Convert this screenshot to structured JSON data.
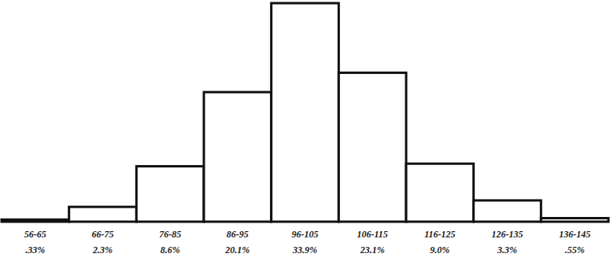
{
  "chart_data": {
    "type": "bar",
    "categories": [
      "56-65",
      "66-75",
      "76-85",
      "86-95",
      "96-105",
      "106-115",
      "116-125",
      "126-135",
      "136-145"
    ],
    "values": [
      0.33,
      2.3,
      8.6,
      20.1,
      33.9,
      23.1,
      9.0,
      3.3,
      0.55
    ],
    "value_labels": [
      ".33%",
      "2.3%",
      "8.6%",
      "20.1%",
      "33.9%",
      "23.1%",
      "9.0%",
      "3.3%",
      ".55%"
    ],
    "color": "#ffffff",
    "ylim": [
      0,
      33.9
    ],
    "data_labels": true,
    "tick_labels": "x"
  }
}
